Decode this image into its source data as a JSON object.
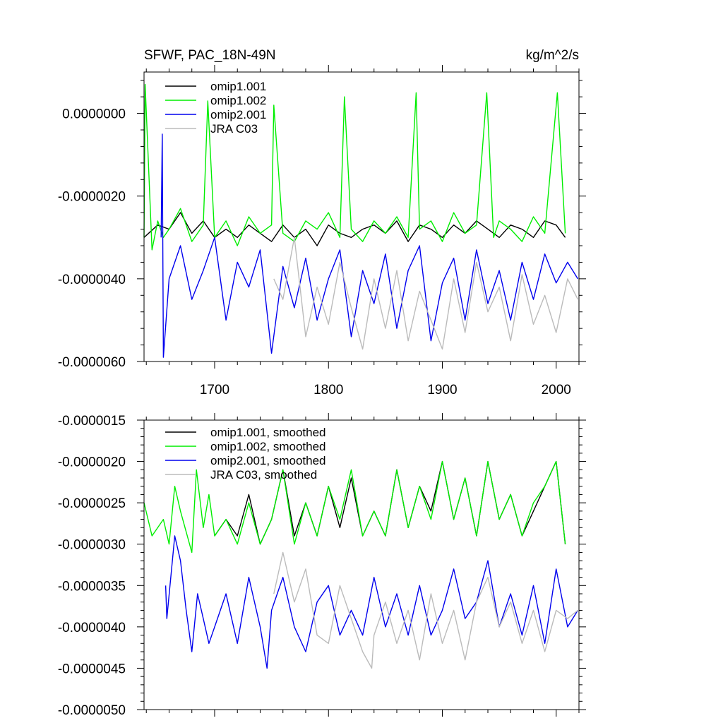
{
  "chart_data": [
    {
      "type": "line",
      "title": "SFWF, PAC_18N-49N",
      "units": "kg/m^2/s",
      "xlim": [
        1638,
        2020
      ],
      "ylim": [
        -6e-06,
        1e-06
      ],
      "yticks": [
        {
          "value": 0.0,
          "label": "0.0000000"
        },
        {
          "value": -2e-06,
          "label": "-0.0000020"
        },
        {
          "value": -4e-06,
          "label": "-0.0000040"
        },
        {
          "value": -6e-06,
          "label": "-0.0000060"
        }
      ],
      "xticks": [
        {
          "value": 1700,
          "label": "1700"
        },
        {
          "value": 1800,
          "label": "1800"
        },
        {
          "value": 1900,
          "label": "1900"
        },
        {
          "value": 2000,
          "label": "2000"
        }
      ],
      "legend_position": "top-left",
      "grid": false,
      "series": [
        {
          "name": "omip1.001",
          "color": "#000000",
          "x": [
            1638,
            1650,
            1660,
            1670,
            1680,
            1690,
            1700,
            1710,
            1720,
            1730,
            1740,
            1750,
            1760,
            1770,
            1780,
            1790,
            1800,
            1810,
            1820,
            1830,
            1840,
            1850,
            1860,
            1870,
            1880,
            1890,
            1900,
            1910,
            1920,
            1930,
            1940,
            1950,
            1960,
            1970,
            1980,
            1990,
            2000,
            2008
          ],
          "y": [
            -3e-06,
            -2.7e-06,
            -2.8e-06,
            -2.4e-06,
            -2.9e-06,
            -2.6e-06,
            -3e-06,
            -2.8e-06,
            -3e-06,
            -2.7e-06,
            -2.9e-06,
            -3.1e-06,
            -2.7e-06,
            -3e-06,
            -2.8e-06,
            -3.2e-06,
            -2.7e-06,
            -2.9e-06,
            -3e-06,
            -2.8e-06,
            -2.7e-06,
            -2.9e-06,
            -2.6e-06,
            -3.1e-06,
            -2.7e-06,
            -2.8e-06,
            -3e-06,
            -2.7e-06,
            -2.9e-06,
            -2.6e-06,
            -2.8e-06,
            -3e-06,
            -2.7e-06,
            -2.8e-06,
            -3e-06,
            -2.6e-06,
            -2.7e-06,
            -3e-06
          ]
        },
        {
          "name": "omip1.002",
          "color": "#00ee00",
          "x": [
            1638,
            1639,
            1645,
            1650,
            1655,
            1660,
            1670,
            1680,
            1690,
            1694,
            1700,
            1710,
            1720,
            1730,
            1740,
            1750,
            1752,
            1760,
            1770,
            1780,
            1790,
            1800,
            1810,
            1814,
            1820,
            1830,
            1840,
            1850,
            1860,
            1870,
            1877,
            1880,
            1890,
            1900,
            1910,
            1920,
            1930,
            1939,
            1945,
            1950,
            1960,
            1970,
            1980,
            1990,
            2001,
            2008
          ],
          "y": [
            -3e-06,
            7e-07,
            -3.3e-06,
            -2.6e-06,
            -3e-06,
            -2.8e-06,
            -2.3e-06,
            -3.1e-06,
            -2.7e-06,
            3e-07,
            -3e-06,
            -2.6e-06,
            -3.2e-06,
            -2.5e-06,
            -2.9e-06,
            -2.7e-06,
            2e-07,
            -2.9e-06,
            -3.1e-06,
            -2.6e-06,
            -2.8e-06,
            -2.4e-06,
            -3e-06,
            4e-07,
            -2.8e-06,
            -3.1e-06,
            -2.6e-06,
            -2.9e-06,
            -2.5e-06,
            -3e-06,
            5e-07,
            -2.8e-06,
            -2.6e-06,
            -3.1e-06,
            -2.4e-06,
            -2.9e-06,
            -2.7e-06,
            5e-07,
            -3e-06,
            -2.6e-06,
            -2.8e-06,
            -3.1e-06,
            -2.5e-06,
            -2.9e-06,
            5e-07,
            -2.9e-06
          ]
        },
        {
          "name": "omip2.001",
          "color": "#0000ee",
          "x": [
            1653,
            1654,
            1655,
            1660,
            1670,
            1680,
            1690,
            1700,
            1710,
            1720,
            1730,
            1740,
            1750,
            1760,
            1770,
            1780,
            1790,
            1800,
            1810,
            1820,
            1830,
            1840,
            1850,
            1860,
            1870,
            1880,
            1890,
            1900,
            1910,
            1920,
            1930,
            1940,
            1950,
            1960,
            1970,
            1980,
            1990,
            2000,
            2010,
            2019
          ],
          "y": [
            -3e-06,
            -5e-07,
            -5.9e-06,
            -4e-06,
            -3.2e-06,
            -4.5e-06,
            -3.8e-06,
            -3e-06,
            -5e-06,
            -3.6e-06,
            -4.2e-06,
            -3.3e-06,
            -5.8e-06,
            -3.7e-06,
            -4.7e-06,
            -3.5e-06,
            -5e-06,
            -4e-06,
            -3.3e-06,
            -5.4e-06,
            -3.8e-06,
            -4.6e-06,
            -3.4e-06,
            -5.2e-06,
            -3.8e-06,
            -3.2e-06,
            -5.5e-06,
            -4.1e-06,
            -3.5e-06,
            -5e-06,
            -3.3e-06,
            -4.6e-06,
            -3.8e-06,
            -5e-06,
            -3.6e-06,
            -4.5e-06,
            -3.4e-06,
            -4.1e-06,
            -3.6e-06,
            -4e-06
          ]
        },
        {
          "name": "JRA C03",
          "color": "#bbbbbb",
          "x": [
            1752,
            1760,
            1770,
            1780,
            1790,
            1800,
            1810,
            1820,
            1830,
            1840,
            1850,
            1860,
            1870,
            1880,
            1890,
            1900,
            1910,
            1920,
            1930,
            1940,
            1950,
            1960,
            1970,
            1980,
            1990,
            2000,
            2010,
            2019
          ],
          "y": [
            -4e-06,
            -4.5e-06,
            -3e-06,
            -5.4e-06,
            -4.2e-06,
            -5.1e-06,
            -3.6e-06,
            -4.7e-06,
            -5.7e-06,
            -4e-06,
            -5.2e-06,
            -3.8e-06,
            -5.5e-06,
            -4.3e-06,
            -5e-06,
            -5.7e-06,
            -4e-06,
            -5.3e-06,
            -3.6e-06,
            -4.8e-06,
            -4.2e-06,
            -5.5e-06,
            -3.9e-06,
            -5.1e-06,
            -4.4e-06,
            -5.3e-06,
            -4e-06,
            -4.5e-06
          ]
        }
      ]
    },
    {
      "type": "line",
      "xlim": [
        1638,
        2020
      ],
      "ylim": [
        -5e-06,
        -1.5e-06
      ],
      "yticks": [
        {
          "value": -1.5e-06,
          "label": "-0.0000015"
        },
        {
          "value": -2e-06,
          "label": "-0.0000020"
        },
        {
          "value": -2.5e-06,
          "label": "-0.0000025"
        },
        {
          "value": -3e-06,
          "label": "-0.0000030"
        },
        {
          "value": -3.5e-06,
          "label": "-0.0000035"
        },
        {
          "value": -4e-06,
          "label": "-0.0000040"
        },
        {
          "value": -4.5e-06,
          "label": "-0.0000045"
        },
        {
          "value": -5e-06,
          "label": "-0.0000050"
        }
      ],
      "xticks": [
        {
          "value": 1700,
          "label": ""
        },
        {
          "value": 1800,
          "label": ""
        },
        {
          "value": 1900,
          "label": ""
        },
        {
          "value": 2000,
          "label": ""
        }
      ],
      "legend_position": "top-left",
      "grid": false,
      "series": [
        {
          "name": "omip1.001, smoothed",
          "color": "#000000",
          "x": [
            1700,
            1710,
            1720,
            1730,
            1740,
            1750,
            1760,
            1770,
            1780,
            1790,
            1800,
            1810,
            1820,
            1830,
            1840,
            1850,
            1860,
            1870,
            1880,
            1890,
            1900,
            1910,
            1920,
            1930,
            1940,
            1950,
            1960,
            1970,
            1980,
            1990,
            2000,
            2008
          ],
          "y": [
            -2.9e-06,
            -2.7e-06,
            -2.9e-06,
            -2.4e-06,
            -3e-06,
            -2.7e-06,
            -2.1e-06,
            -2.9e-06,
            -2.5e-06,
            -2.9e-06,
            -2.3e-06,
            -2.8e-06,
            -2.2e-06,
            -2.9e-06,
            -2.6e-06,
            -2.9e-06,
            -2.1e-06,
            -2.8e-06,
            -2.3e-06,
            -2.6e-06,
            -2e-06,
            -2.7e-06,
            -2.2e-06,
            -2.9e-06,
            -2e-06,
            -2.7e-06,
            -2.4e-06,
            -2.9e-06,
            -2.6e-06,
            -2.3e-06,
            -2e-06,
            -3e-06
          ]
        },
        {
          "name": "omip1.002, smoothed",
          "color": "#00ee00",
          "x": [
            1638,
            1645,
            1655,
            1660,
            1665,
            1670,
            1680,
            1684,
            1690,
            1695,
            1700,
            1710,
            1720,
            1730,
            1740,
            1750,
            1760,
            1770,
            1780,
            1790,
            1800,
            1810,
            1820,
            1830,
            1840,
            1850,
            1860,
            1870,
            1880,
            1890,
            1900,
            1910,
            1920,
            1930,
            1940,
            1950,
            1960,
            1970,
            1980,
            1990,
            2000,
            2008
          ],
          "y": [
            -2.5e-06,
            -2.9e-06,
            -2.7e-06,
            -3e-06,
            -2.3e-06,
            -2.6e-06,
            -3.1e-06,
            -2.1e-06,
            -2.8e-06,
            -2.4e-06,
            -2.9e-06,
            -2.7e-06,
            -3e-06,
            -2.5e-06,
            -3e-06,
            -2.7e-06,
            -2.1e-06,
            -3e-06,
            -2.5e-06,
            -2.9e-06,
            -2.3e-06,
            -2.7e-06,
            -2.1e-06,
            -2.9e-06,
            -2.6e-06,
            -2.9e-06,
            -2.1e-06,
            -2.8e-06,
            -2.3e-06,
            -2.7e-06,
            -2e-06,
            -2.7e-06,
            -2.2e-06,
            -2.9e-06,
            -2e-06,
            -2.7e-06,
            -2.4e-06,
            -2.9e-06,
            -2.5e-06,
            -2.3e-06,
            -2e-06,
            -3e-06
          ]
        },
        {
          "name": "omip2.001, smoothed",
          "color": "#0000ee",
          "x": [
            1657,
            1658,
            1665,
            1670,
            1675,
            1680,
            1685,
            1690,
            1695,
            1700,
            1710,
            1720,
            1730,
            1740,
            1746,
            1750,
            1760,
            1770,
            1780,
            1790,
            1800,
            1810,
            1820,
            1830,
            1840,
            1850,
            1860,
            1870,
            1880,
            1890,
            1900,
            1910,
            1920,
            1930,
            1940,
            1950,
            1960,
            1970,
            1980,
            1990,
            2000,
            2010,
            2019
          ],
          "y": [
            -3.5e-06,
            -3.9e-06,
            -2.9e-06,
            -3.2e-06,
            -3.8e-06,
            -4.3e-06,
            -3.6e-06,
            -3.9e-06,
            -4.2e-06,
            -4e-06,
            -3.6e-06,
            -4.2e-06,
            -3.4e-06,
            -4e-06,
            -4.5e-06,
            -3.8e-06,
            -3.4e-06,
            -4e-06,
            -4.3e-06,
            -3.7e-06,
            -3.5e-06,
            -4.1e-06,
            -3.8e-06,
            -4.1e-06,
            -3.4e-06,
            -4e-06,
            -3.6e-06,
            -4.1e-06,
            -3.5e-06,
            -4.1e-06,
            -3.8e-06,
            -3.3e-06,
            -3.9e-06,
            -3.7e-06,
            -3.2e-06,
            -4e-06,
            -3.6e-06,
            -4.1e-06,
            -3.5e-06,
            -4.2e-06,
            -3.3e-06,
            -4e-06,
            -3.8e-06
          ]
        },
        {
          "name": "JRA C03, smoothed",
          "color": "#bbbbbb",
          "x": [
            1752,
            1760,
            1770,
            1780,
            1790,
            1800,
            1810,
            1820,
            1830,
            1838,
            1840,
            1850,
            1860,
            1870,
            1880,
            1890,
            1900,
            1910,
            1920,
            1930,
            1940,
            1950,
            1960,
            1970,
            1980,
            1990,
            2000,
            2010,
            2019
          ],
          "y": [
            -3.6e-06,
            -3.1e-06,
            -3.7e-06,
            -3.3e-06,
            -4.1e-06,
            -4.2e-06,
            -3.5e-06,
            -3.9e-06,
            -4.3e-06,
            -4.5e-06,
            -4.1e-06,
            -3.7e-06,
            -4.2e-06,
            -3.8e-06,
            -4.4e-06,
            -3.6e-06,
            -4.2e-06,
            -3.8e-06,
            -4.4e-06,
            -3.7e-06,
            -3.4e-06,
            -4e-06,
            -3.7e-06,
            -4.2e-06,
            -3.8e-06,
            -4.3e-06,
            -3.8e-06,
            -3.9e-06,
            -3.8e-06
          ]
        }
      ]
    }
  ]
}
